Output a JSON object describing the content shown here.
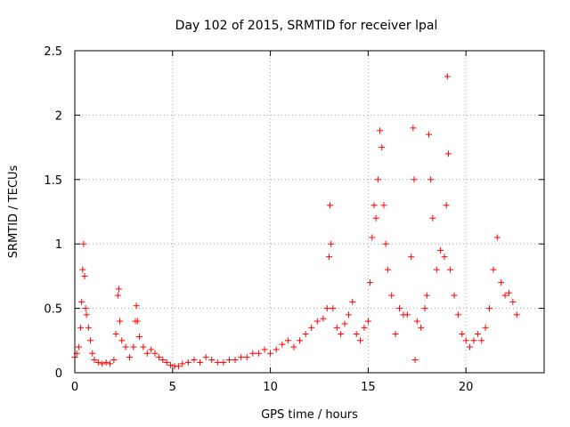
{
  "chart_data": {
    "type": "scatter",
    "title": "Day 102 of 2015, SRMTID for receiver lpal",
    "xlabel": "GPS time / hours",
    "ylabel": "SRMTID / TECUs",
    "xlim": [
      0,
      24
    ],
    "ylim": [
      0,
      2.5
    ],
    "xticks": [
      0,
      5,
      10,
      15,
      20
    ],
    "xtick_labels": [
      "0",
      "5",
      "10",
      "15",
      "20"
    ],
    "yticks": [
      0,
      0.5,
      1,
      1.5,
      2,
      2.5
    ],
    "ytick_labels": [
      "0",
      "0.5",
      "1",
      "1.5",
      "2",
      "2.5"
    ],
    "grid": true,
    "marker": "+",
    "color": "#ff0000",
    "series": [
      {
        "name": "SRMTID",
        "x": [
          0.0,
          0.1,
          0.2,
          0.3,
          0.35,
          0.4,
          0.45,
          0.5,
          0.55,
          0.6,
          0.7,
          0.8,
          0.9,
          1.0,
          1.2,
          1.4,
          1.6,
          1.8,
          2.0,
          2.1,
          2.2,
          2.25,
          2.3,
          2.4,
          2.6,
          2.8,
          3.0,
          3.1,
          3.15,
          3.2,
          3.3,
          3.5,
          3.7,
          3.9,
          4.1,
          4.3,
          4.5,
          4.7,
          4.9,
          5.1,
          5.3,
          5.5,
          5.8,
          6.1,
          6.4,
          6.7,
          7.0,
          7.3,
          7.6,
          7.9,
          8.2,
          8.5,
          8.8,
          9.1,
          9.4,
          9.7,
          10.0,
          10.3,
          10.6,
          10.9,
          11.2,
          11.5,
          11.8,
          12.1,
          12.4,
          12.7,
          12.9,
          13.0,
          13.05,
          13.1,
          13.2,
          13.4,
          13.6,
          13.8,
          14.0,
          14.2,
          14.4,
          14.6,
          14.8,
          15.0,
          15.1,
          15.2,
          15.3,
          15.4,
          15.5,
          15.6,
          15.7,
          15.8,
          15.9,
          16.0,
          16.2,
          16.4,
          16.6,
          16.8,
          17.0,
          17.2,
          17.3,
          17.35,
          17.4,
          17.5,
          17.7,
          17.9,
          18.0,
          18.1,
          18.2,
          18.3,
          18.5,
          18.7,
          18.9,
          19.0,
          19.05,
          19.1,
          19.2,
          19.4,
          19.6,
          19.8,
          20.0,
          20.2,
          20.4,
          20.6,
          20.8,
          21.0,
          21.2,
          21.4,
          21.6,
          21.8,
          22.0,
          22.2,
          22.4,
          22.6
        ],
        "y": [
          0.12,
          0.15,
          0.2,
          0.35,
          0.55,
          0.8,
          1.0,
          0.75,
          0.5,
          0.45,
          0.35,
          0.25,
          0.15,
          0.1,
          0.08,
          0.07,
          0.08,
          0.07,
          0.1,
          0.3,
          0.6,
          0.65,
          0.4,
          0.25,
          0.2,
          0.12,
          0.2,
          0.4,
          0.52,
          0.4,
          0.28,
          0.2,
          0.15,
          0.18,
          0.15,
          0.12,
          0.1,
          0.08,
          0.06,
          0.05,
          0.05,
          0.07,
          0.08,
          0.1,
          0.08,
          0.12,
          0.1,
          0.08,
          0.08,
          0.1,
          0.1,
          0.12,
          0.12,
          0.15,
          0.15,
          0.18,
          0.15,
          0.18,
          0.22,
          0.25,
          0.2,
          0.25,
          0.3,
          0.35,
          0.4,
          0.42,
          0.5,
          0.9,
          1.3,
          1.0,
          0.5,
          0.35,
          0.3,
          0.38,
          0.45,
          0.55,
          0.3,
          0.25,
          0.35,
          0.4,
          0.7,
          1.05,
          1.3,
          1.2,
          1.5,
          1.88,
          1.75,
          1.3,
          1.0,
          0.8,
          0.6,
          0.3,
          0.5,
          0.45,
          0.45,
          0.9,
          1.9,
          1.5,
          0.1,
          0.4,
          0.35,
          0.5,
          0.6,
          1.85,
          1.5,
          1.2,
          0.8,
          0.95,
          0.9,
          1.3,
          2.3,
          1.7,
          0.8,
          0.6,
          0.45,
          0.3,
          0.25,
          0.2,
          0.25,
          0.3,
          0.25,
          0.35,
          0.5,
          0.8,
          1.05,
          0.7,
          0.6,
          0.62,
          0.55,
          0.45
        ]
      }
    ]
  }
}
